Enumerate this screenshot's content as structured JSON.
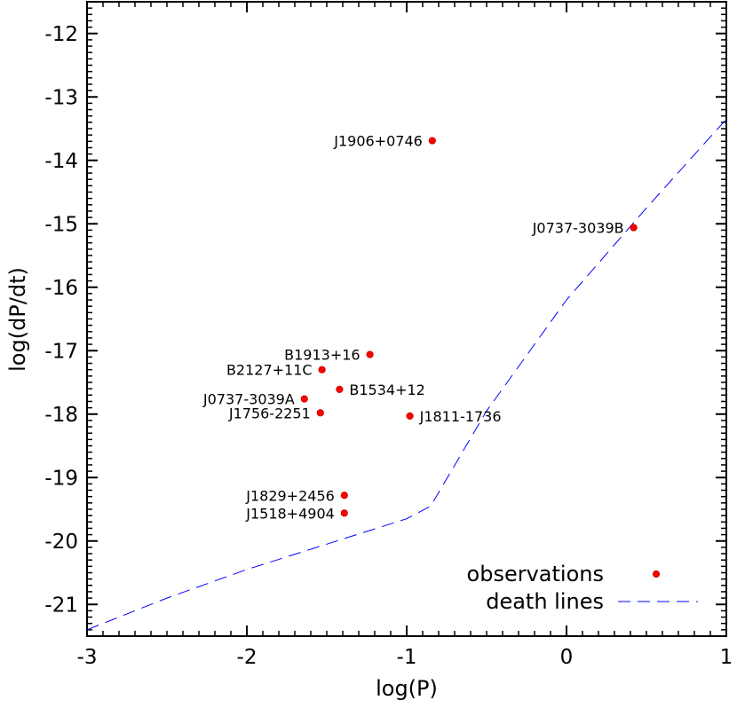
{
  "chart_data": {
    "type": "scatter",
    "title": "",
    "xlabel": "log(P)",
    "ylabel": "log(dP/dt)",
    "xlim": [
      -3,
      1
    ],
    "ylim": [
      -21.5,
      -11.5
    ],
    "xticks": [
      "-3",
      "-2",
      "-1",
      "0",
      "1"
    ],
    "xtick_values": [
      -3,
      -2,
      -1,
      0,
      1
    ],
    "yticks": [
      "-12",
      "-13",
      "-14",
      "-15",
      "-16",
      "-17",
      "-18",
      "-19",
      "-20",
      "-21"
    ],
    "ytick_values": [
      -12,
      -13,
      -14,
      -15,
      -16,
      -17,
      -18,
      -19,
      -20,
      -21
    ],
    "grid": false,
    "legend_position": "bottom-right",
    "series": [
      {
        "name": "observations",
        "kind": "scatter",
        "color": "#ff0000",
        "points": [
          {
            "label": "J1906+0746",
            "x": -0.84,
            "y": -13.69,
            "label_side": "left"
          },
          {
            "label": "J0737-3039B",
            "x": 0.42,
            "y": -15.06,
            "label_side": "left"
          },
          {
            "label": "B1913+16",
            "x": -1.23,
            "y": -17.06,
            "label_side": "left"
          },
          {
            "label": "B2127+11C",
            "x": -1.53,
            "y": -17.3,
            "label_side": "left"
          },
          {
            "label": "B1534+12",
            "x": -1.42,
            "y": -17.61,
            "label_side": "right"
          },
          {
            "label": "J0737-3039A",
            "x": -1.64,
            "y": -17.76,
            "label_side": "left"
          },
          {
            "label": "J1756-2251",
            "x": -1.54,
            "y": -17.98,
            "label_side": "left"
          },
          {
            "label": "J1811-1736",
            "x": -0.98,
            "y": -18.03,
            "label_side": "right"
          },
          {
            "label": "J1829+2456",
            "x": -1.39,
            "y": -19.28,
            "label_side": "left"
          },
          {
            "label": "J1518+4904",
            "x": -1.39,
            "y": -19.56,
            "label_side": "left"
          }
        ]
      },
      {
        "name": "death lines",
        "kind": "line",
        "style": "dashed",
        "color": "#0000ff",
        "points": [
          {
            "x": -3.0,
            "y": -21.4
          },
          {
            "x": -2.5,
            "y": -20.9
          },
          {
            "x": -2.0,
            "y": -20.45
          },
          {
            "x": -1.5,
            "y": -20.05
          },
          {
            "x": -1.0,
            "y": -19.65
          },
          {
            "x": -0.85,
            "y": -19.45
          },
          {
            "x": -0.5,
            "y": -17.95
          },
          {
            "x": 0.0,
            "y": -16.2
          },
          {
            "x": 0.5,
            "y": -14.75
          },
          {
            "x": 1.0,
            "y": -13.35
          }
        ]
      }
    ]
  }
}
